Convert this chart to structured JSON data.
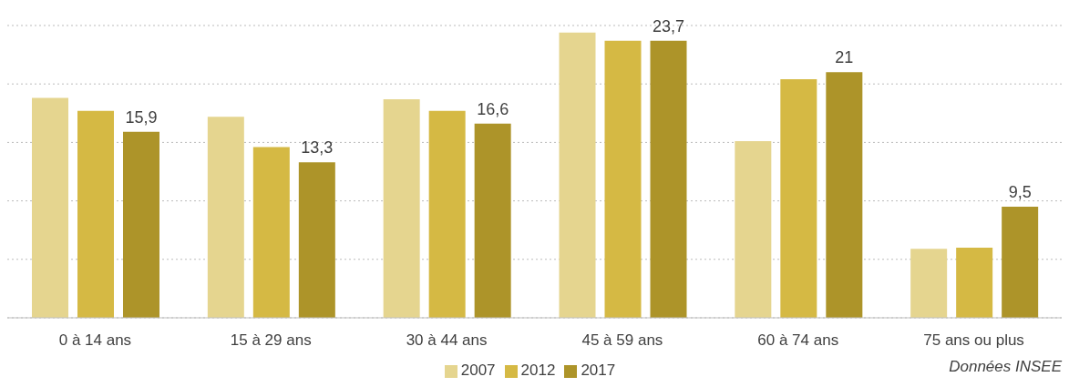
{
  "chart_data": {
    "type": "bar",
    "categories": [
      "0 à 14 ans",
      "15 à 29 ans",
      "30 à 44 ans",
      "45 à 59 ans",
      "60 à 74 ans",
      "75 ans ou plus"
    ],
    "series": [
      {
        "name": "2007",
        "color": "#e5d58f",
        "values": [
          18.8,
          17.2,
          18.7,
          24.4,
          15.1,
          5.9
        ]
      },
      {
        "name": "2012",
        "color": "#d5b944",
        "values": [
          17.7,
          14.6,
          17.7,
          23.7,
          20.4,
          6.0
        ]
      },
      {
        "name": "2017",
        "color": "#ad9429",
        "values": [
          15.9,
          13.3,
          16.6,
          23.7,
          21,
          9.5
        ],
        "value_labels": [
          "15,9",
          "13,3",
          "16,6",
          "23,7",
          "21",
          "9,5"
        ]
      }
    ],
    "ylim": [
      0,
      25
    ],
    "yticks": [
      {
        "value": 0,
        "label": null
      },
      {
        "value": 5,
        "label": null
      },
      {
        "value": 10,
        "label": null
      },
      {
        "value": 15,
        "label": null
      },
      {
        "value": 20,
        "label": null
      },
      {
        "value": 25,
        "label": null
      }
    ],
    "tick_labels": "x",
    "grid": "y",
    "legend": "bottom",
    "annotations": [
      "Données INSEE"
    ]
  }
}
